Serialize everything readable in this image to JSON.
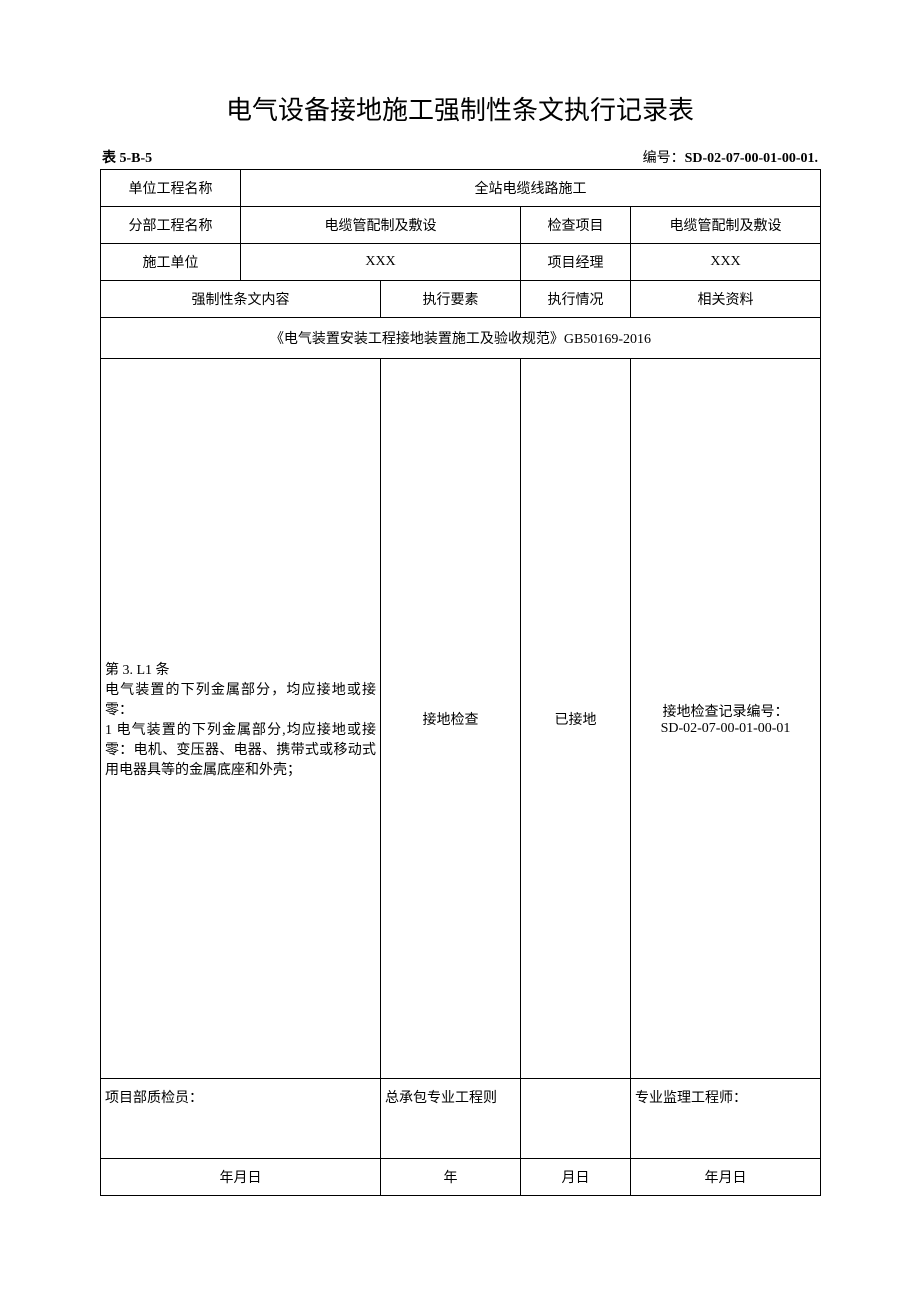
{
  "title": "电气设备接地施工强制性条文执行记录表",
  "table_label": "表 5-B-5",
  "doc_number_label": "编号：",
  "doc_number": "SD-02-07-00-01-00-01.",
  "header": {
    "unit_project_label": "单位工程名称",
    "unit_project_value": "全站电缆线路施工",
    "sub_project_label": "分部工程名称",
    "sub_project_value": "电缆管配制及敷设",
    "check_item_label": "检查项目",
    "check_item_value": "电缆管配制及敷设",
    "construction_unit_label": "施工单位",
    "construction_unit_value": "XXX",
    "pm_label": "项目经理",
    "pm_value": "XXX"
  },
  "columns": {
    "mandatory_content": "强制性条文内容",
    "execution_element": "执行要素",
    "execution_status": "执行情况",
    "related_docs": "相关资料"
  },
  "spec_title": "《电气装置安装工程接地装置施工及验收规范》GB50169-2016",
  "row": {
    "content": "第 3. L1 条\n电气装置的下列金属部分，均应接地或接零：\n1 电气装置的下列金属部分,均应接地或接零：电机、变压器、电器、携带式或移动式用电器具等的金属底座和外壳；",
    "element": "接地检查",
    "status": "已接地",
    "docs": "接地检查记录编号：\nSD-02-07-00-01-00-01"
  },
  "signatures": {
    "qc_label": "项目部质检员：",
    "contractor_label": "总承包专业工程则",
    "supervisor_label": "专业监理工程师：",
    "date1": "年月日",
    "date2": "年",
    "date3": "月日",
    "date4": "年月日"
  },
  "colors": {
    "background": "#ffffff",
    "text": "#000000",
    "border": "#000000"
  },
  "typography": {
    "title_fontsize": 26,
    "body_fontsize": 14,
    "font_family": "SimSun"
  }
}
